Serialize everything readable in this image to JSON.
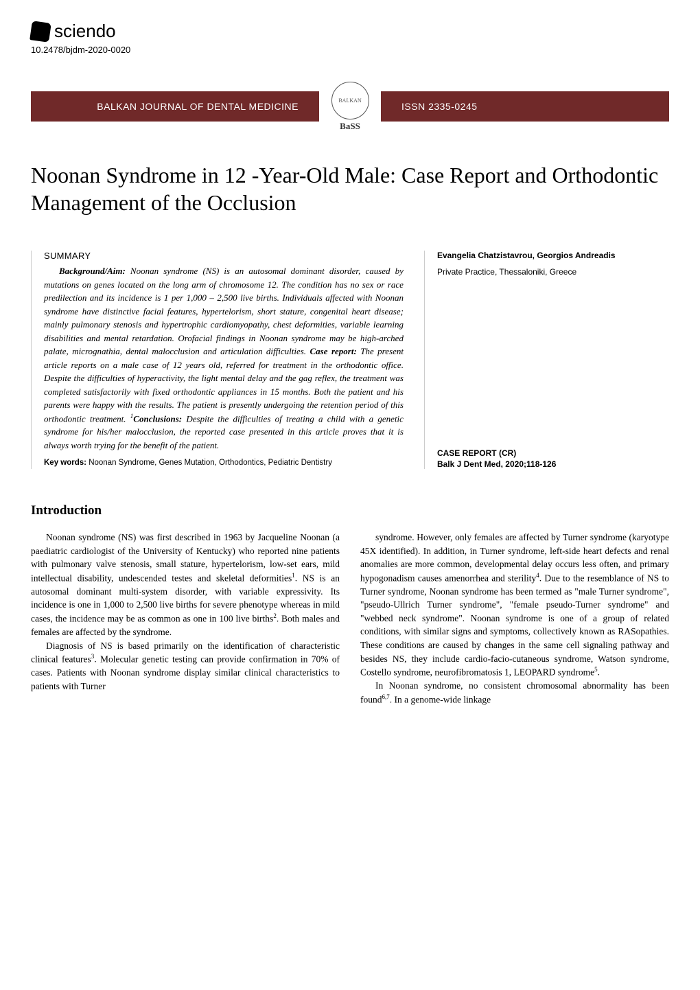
{
  "header": {
    "publisher_name": "sciendo",
    "doi": "10.2478/bjdm-2020-0020"
  },
  "banner": {
    "journal_name": "BALKAN JOURNAL OF DENTAL MEDICINE",
    "emblem_top": "BALKAN",
    "emblem_bottom": "BaSS",
    "issn": "ISSN 2335-0245",
    "bg_color": "#702929"
  },
  "article": {
    "title": "Noonan Syndrome in 12 -Year-Old Male: Case Report and Orthodontic Management of the Occlusion"
  },
  "summary": {
    "heading": "SUMMARY",
    "background_label": "Background/Aim:",
    "background_text": " Noonan syndrome (NS) is an autosomal dominant disorder, caused by mutations on genes located on the long arm of chromosome 12. The condition has no sex or race predilection and its incidence is 1 per 1,000 – 2,500 live births. Individuals affected with Noonan syndrome have distinctive facial features, hypertelorism, short stature, congenital heart disease; mainly pulmonary stenosis and hypertrophic cardiomyopathy, chest deformities, variable learning disabilities and mental retardation. Orofacial findings in Noonan syndrome may be high-arched palate, micrognathia, dental malocclusion and articulation difficulties. ",
    "case_label": "Case report:",
    "case_text": " The present article reports on a male case of 12 years old, referred for treatment in the orthodontic office. Despite the difficulties of hyperactivity, the light mental delay and the gag reflex, the treatment was completed satisfactorily with fixed orthodontic appliances in 15 months. Both the patient and his parents were happy with the results. The patient is presently undergoing the retention period of this orthodontic treatment. ",
    "conclusions_label": "Conclusions:",
    "conclusions_text": " Despite the difficulties of treating a child with a genetic syndrome for his/her malocclusion, the reported case presented in this article proves that it is always worth trying for the benefit of the patient.",
    "sup_ref": "1"
  },
  "keywords": {
    "label": "Key words:",
    "text": " Noonan Syndrome, Genes Mutation, Orthodontics, Pediatric Dentistry"
  },
  "meta": {
    "authors": "Evangelia Chatzistavrou, Georgios Andreadis",
    "affiliation": "Private Practice, Thessaloniki, Greece",
    "article_type": "CASE REPORT (CR)",
    "citation": "Balk J Dent Med, 2020;118-126"
  },
  "body": {
    "section_heading": "Introduction",
    "col1_p1_part1": "Noonan syndrome (NS) was first described in 1963 by Jacqueline Noonan (a paediatric cardiologist of the University of Kentucky) who reported nine patients with pulmonary valve stenosis, small stature, hypertelorism, low-set ears, mild intellectual disability, undescended testes and skeletal deformities",
    "col1_sup1": "1",
    "col1_p1_part2": ". NS is an autosomal dominant multi-system disorder, with variable expressivity. Its incidence is one in 1,000 to 2,500 live births for severe phenotype whereas in mild cases, the incidence may be as common as one in 100 live births",
    "col1_sup2": "2",
    "col1_p1_part3": ". Both males and females are affected by the syndrome.",
    "col1_p2_part1": "Diagnosis of NS is based primarily on the identification of characteristic clinical features",
    "col1_sup3": "3",
    "col1_p2_part2": ". Molecular genetic testing can provide confirmation in 70% of cases. Patients with Noonan syndrome display similar clinical characteristics to patients with Turner",
    "col2_p1_part1": "syndrome. However, only females are affected by Turner syndrome (karyotype 45X identified). In addition, in Turner syndrome, left-side heart defects and renal anomalies are more common, developmental delay occurs less often, and primary hypogonadism causes amenorrhea and sterility",
    "col2_sup1": "4",
    "col2_p1_part2": ". Due to the resemblance of NS to Turner syndrome, Noonan syndrome has been termed as \"male Turner syndrome\", \"pseudo-Ullrich Turner syndrome\", \"female pseudo-Turner syndrome\" and \"webbed neck syndrome\". Noonan syndrome is one of a group of related conditions, with similar signs and symptoms, collectively known as RASopathies. These conditions are caused by changes in the same cell signaling pathway and besides NS, they include cardio-facio-cutaneous syndrome, Watson syndrome, Costello syndrome, neurofibromatosis 1, LEOPARD syndrome",
    "col2_sup2": "5",
    "col2_p1_part3": ".",
    "col2_p2_part1": "In Noonan syndrome, no consistent chromosomal abnormality has been found",
    "col2_sup3": "6,7",
    "col2_p2_part2": ". In a genome-wide linkage"
  },
  "styles": {
    "page_bg": "#ffffff",
    "text_color": "#000000",
    "banner_bg": "#702929",
    "banner_text": "#ffffff",
    "divider_color": "#cccccc",
    "title_fontsize": 32,
    "body_fontsize": 13.5,
    "summary_fontsize": 13
  }
}
